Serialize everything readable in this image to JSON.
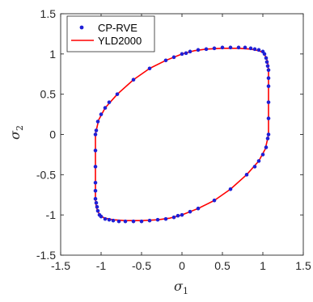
{
  "chart_data": {
    "type": "line",
    "xlabel": "σ",
    "xlabel_sub": "1",
    "ylabel": "σ",
    "ylabel_sub": "2",
    "xlim": [
      -1.5,
      1.5
    ],
    "ylim": [
      -1.5,
      1.5
    ],
    "xticks": [
      -1.5,
      -1,
      -0.5,
      0,
      0.5,
      1,
      1.5
    ],
    "yticks": [
      -1.5,
      -1,
      -0.5,
      0,
      0.5,
      1,
      1.5
    ],
    "xtick_labels": [
      "-1.5",
      "-1",
      "-0.5",
      "0",
      "0.5",
      "1",
      "1.5"
    ],
    "ytick_labels": [
      "-1.5",
      "-1",
      "-0.5",
      "0",
      "0.5",
      "1",
      "1.5"
    ],
    "grid": false,
    "legend_position": "top-left",
    "series": [
      {
        "name": "CP-RVE",
        "style": "markers",
        "color": "#1f1fd6",
        "points": [
          [
            1.07,
            0.0
          ],
          [
            1.07,
            0.2
          ],
          [
            1.07,
            0.4
          ],
          [
            1.07,
            0.6
          ],
          [
            1.07,
            0.7
          ],
          [
            1.07,
            0.8
          ],
          [
            1.06,
            0.85
          ],
          [
            1.05,
            0.9
          ],
          [
            1.04,
            0.95
          ],
          [
            1.02,
            1.0
          ],
          [
            1.0,
            1.03
          ],
          [
            0.95,
            1.05
          ],
          [
            0.9,
            1.06
          ],
          [
            0.85,
            1.07
          ],
          [
            0.78,
            1.08
          ],
          [
            0.7,
            1.08
          ],
          [
            0.6,
            1.08
          ],
          [
            0.5,
            1.08
          ],
          [
            0.4,
            1.07
          ],
          [
            0.3,
            1.06
          ],
          [
            0.2,
            1.05
          ],
          [
            0.1,
            1.03
          ],
          [
            0.05,
            1.01
          ],
          [
            0.0,
            1.0
          ],
          [
            -0.1,
            0.96
          ],
          [
            -0.2,
            0.92
          ],
          [
            -0.4,
            0.82
          ],
          [
            -0.6,
            0.68
          ],
          [
            -0.8,
            0.5
          ],
          [
            -0.9,
            0.4
          ],
          [
            -0.95,
            0.33
          ],
          [
            -1.0,
            0.25
          ],
          [
            -1.04,
            0.16
          ],
          [
            -1.06,
            0.05
          ],
          [
            -1.07,
            0.0
          ],
          [
            -1.07,
            -0.2
          ],
          [
            -1.07,
            -0.4
          ],
          [
            -1.07,
            -0.6
          ],
          [
            -1.07,
            -0.7
          ],
          [
            -1.07,
            -0.8
          ],
          [
            -1.06,
            -0.85
          ],
          [
            -1.05,
            -0.9
          ],
          [
            -1.04,
            -0.95
          ],
          [
            -1.02,
            -1.0
          ],
          [
            -1.0,
            -1.02
          ],
          [
            -0.95,
            -1.05
          ],
          [
            -0.9,
            -1.06
          ],
          [
            -0.85,
            -1.07
          ],
          [
            -0.78,
            -1.08
          ],
          [
            -0.7,
            -1.08
          ],
          [
            -0.6,
            -1.08
          ],
          [
            -0.5,
            -1.08
          ],
          [
            -0.4,
            -1.07
          ],
          [
            -0.3,
            -1.06
          ],
          [
            -0.2,
            -1.05
          ],
          [
            -0.1,
            -1.03
          ],
          [
            -0.05,
            -1.01
          ],
          [
            0.0,
            -1.0
          ],
          [
            0.1,
            -0.96
          ],
          [
            0.2,
            -0.92
          ],
          [
            0.4,
            -0.82
          ],
          [
            0.6,
            -0.68
          ],
          [
            0.8,
            -0.5
          ],
          [
            0.9,
            -0.4
          ],
          [
            0.95,
            -0.33
          ],
          [
            1.0,
            -0.25
          ],
          [
            1.04,
            -0.16
          ],
          [
            1.06,
            -0.05
          ]
        ]
      },
      {
        "name": "YLD2000",
        "style": "line",
        "color": "#ff0000",
        "points": [
          [
            1.07,
            0.0
          ],
          [
            1.07,
            0.3
          ],
          [
            1.07,
            0.6
          ],
          [
            1.07,
            0.8
          ],
          [
            1.06,
            0.9
          ],
          [
            1.04,
            0.96
          ],
          [
            1.0,
            1.02
          ],
          [
            0.95,
            1.04
          ],
          [
            0.85,
            1.06
          ],
          [
            0.7,
            1.07
          ],
          [
            0.5,
            1.07
          ],
          [
            0.3,
            1.06
          ],
          [
            0.15,
            1.04
          ],
          [
            0.0,
            1.0
          ],
          [
            -0.2,
            0.92
          ],
          [
            -0.4,
            0.82
          ],
          [
            -0.6,
            0.68
          ],
          [
            -0.8,
            0.5
          ],
          [
            -0.95,
            0.33
          ],
          [
            -1.03,
            0.18
          ],
          [
            -1.06,
            0.05
          ],
          [
            -1.07,
            0.0
          ],
          [
            -1.07,
            -0.3
          ],
          [
            -1.07,
            -0.6
          ],
          [
            -1.07,
            -0.8
          ],
          [
            -1.06,
            -0.9
          ],
          [
            -1.04,
            -0.96
          ],
          [
            -1.0,
            -1.02
          ],
          [
            -0.95,
            -1.04
          ],
          [
            -0.85,
            -1.06
          ],
          [
            -0.7,
            -1.07
          ],
          [
            -0.5,
            -1.07
          ],
          [
            -0.3,
            -1.06
          ],
          [
            -0.15,
            -1.04
          ],
          [
            0.0,
            -1.0
          ],
          [
            0.2,
            -0.92
          ],
          [
            0.4,
            -0.82
          ],
          [
            0.6,
            -0.68
          ],
          [
            0.8,
            -0.5
          ],
          [
            0.95,
            -0.33
          ],
          [
            1.03,
            -0.18
          ],
          [
            1.06,
            -0.05
          ],
          [
            1.07,
            0.0
          ]
        ]
      }
    ]
  }
}
